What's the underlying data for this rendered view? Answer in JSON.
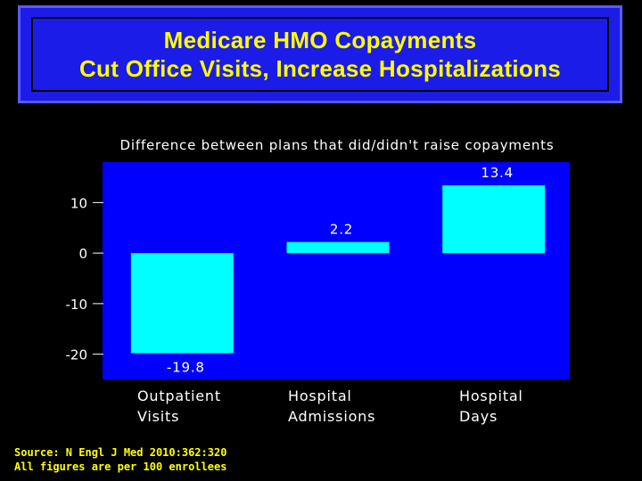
{
  "title": {
    "line1": "Medicare HMO Copayments",
    "line2": "Cut Office Visits, Increase Hospitalizations"
  },
  "colors": {
    "background": "#000000",
    "plot_area": "#0000ff",
    "title_box": "#1c1ce8",
    "title_text": "#ffff00",
    "bar": "#00ffff",
    "text": "#ffffff"
  },
  "chart_data": {
    "type": "bar",
    "subtitle": "Difference between plans that did/didn't raise copayments",
    "categories": [
      [
        "Outpatient",
        "Visits"
      ],
      [
        "Hospital",
        "Admissions"
      ],
      [
        "Hospital",
        "Days"
      ]
    ],
    "values": [
      -19.8,
      2.2,
      13.4
    ],
    "value_labels": [
      "-19.8",
      "2.2",
      "13.4"
    ],
    "yticks": [
      10,
      0,
      -10,
      -20
    ],
    "ytick_labels": [
      "10",
      "0",
      "-10",
      "-20"
    ],
    "ylim": [
      -25,
      18
    ],
    "xlabel": "",
    "ylabel": "",
    "grid": false
  },
  "footer": {
    "source": "Source: N Engl J Med 2010:362:320",
    "note": "All figures are per 100 enrollees"
  }
}
